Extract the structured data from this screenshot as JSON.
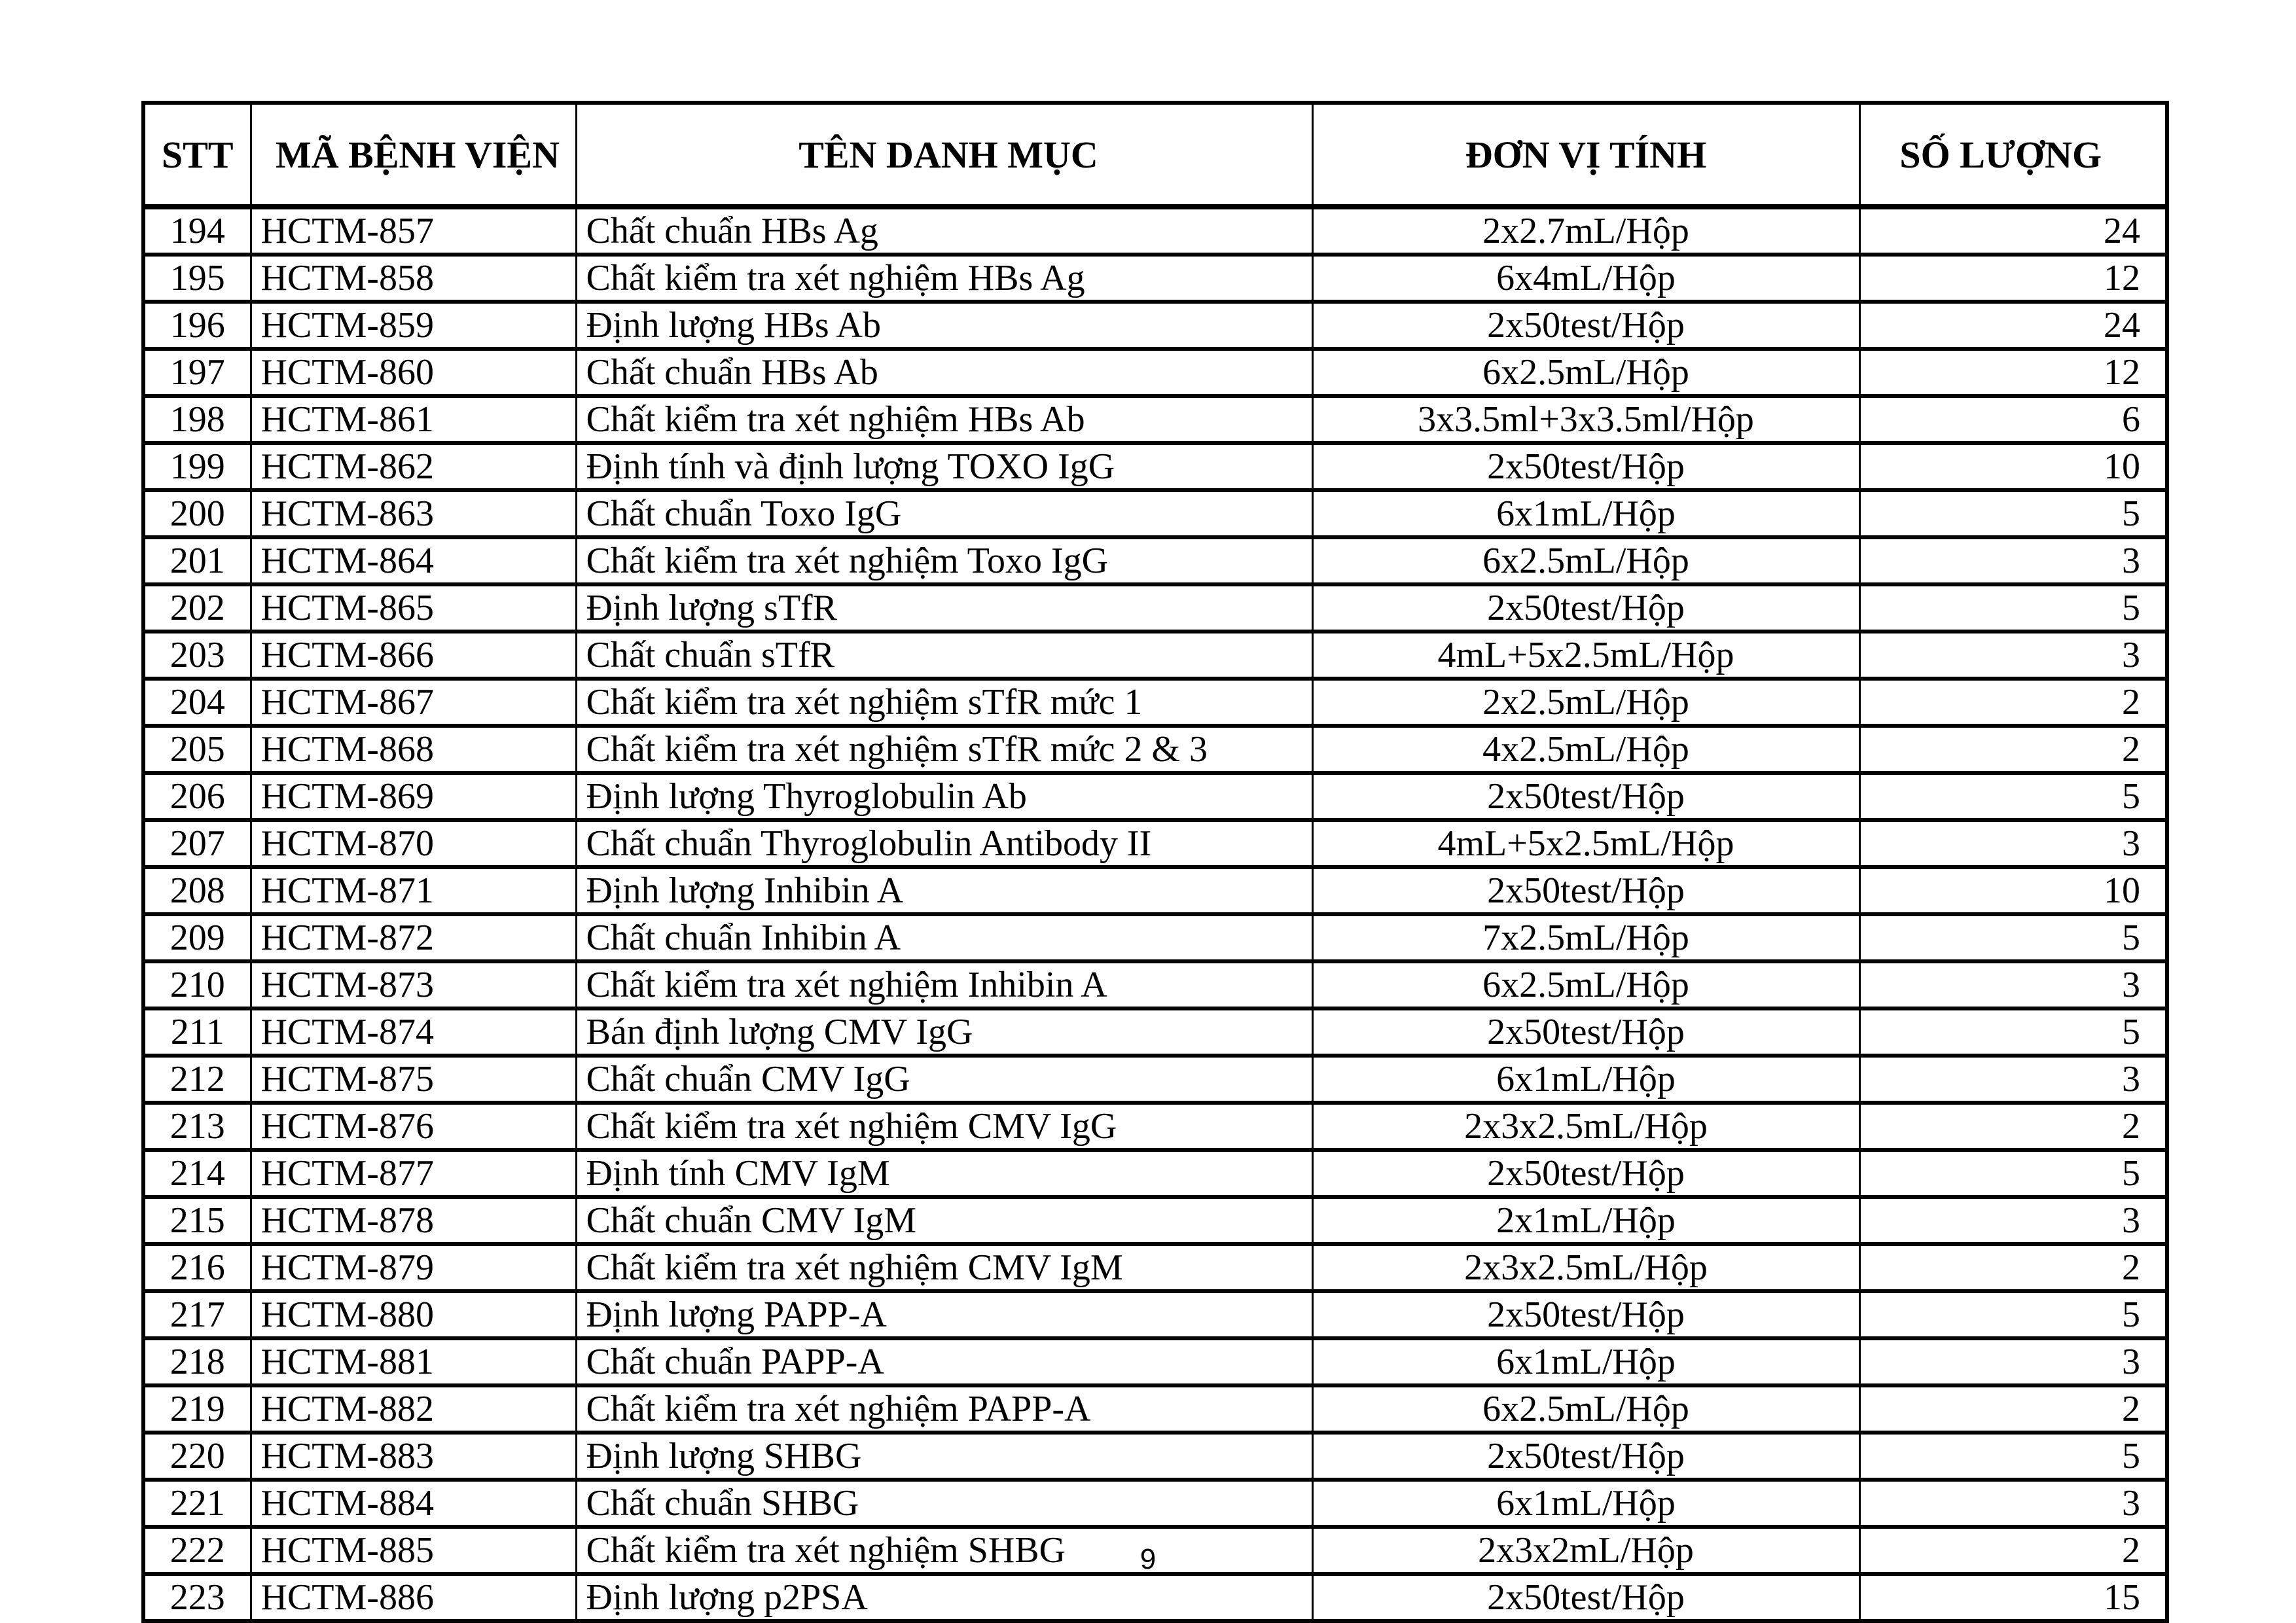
{
  "page": {
    "number": "9"
  },
  "table": {
    "headers": [
      "STT",
      "MÃ BỆNH VIỆN",
      "TÊN DANH MỤC",
      "ĐƠN VỊ TÍNH",
      "SỐ LƯỢNG"
    ],
    "rows": [
      {
        "stt": "194",
        "code": "HCTM-857",
        "name": "Chất chuẩn HBs Ag",
        "unit": "2x2.7mL/Hộp",
        "qty": "24"
      },
      {
        "stt": "195",
        "code": "HCTM-858",
        "name": "Chất kiểm tra xét nghiệm HBs Ag",
        "unit": "6x4mL/Hộp",
        "qty": "12"
      },
      {
        "stt": "196",
        "code": "HCTM-859",
        "name": "Định lượng HBs Ab",
        "unit": "2x50test/Hộp",
        "qty": "24"
      },
      {
        "stt": "197",
        "code": "HCTM-860",
        "name": "Chất chuẩn HBs Ab",
        "unit": "6x2.5mL/Hộp",
        "qty": "12"
      },
      {
        "stt": "198",
        "code": "HCTM-861",
        "name": "Chất kiểm tra xét nghiệm HBs Ab",
        "unit": "3x3.5ml+3x3.5ml/Hộp",
        "qty": "6"
      },
      {
        "stt": "199",
        "code": "HCTM-862",
        "name": "Định tính và định lượng TOXO IgG",
        "unit": "2x50test/Hộp",
        "qty": "10"
      },
      {
        "stt": "200",
        "code": "HCTM-863",
        "name": "Chất chuẩn Toxo IgG",
        "unit": "6x1mL/Hộp",
        "qty": "5"
      },
      {
        "stt": "201",
        "code": "HCTM-864",
        "name": "Chất kiểm tra xét nghiệm Toxo IgG",
        "unit": "6x2.5mL/Hộp",
        "qty": "3"
      },
      {
        "stt": "202",
        "code": "HCTM-865",
        "name": "Định lượng sTfR",
        "unit": "2x50test/Hộp",
        "qty": "5"
      },
      {
        "stt": "203",
        "code": "HCTM-866",
        "name": "Chất chuẩn sTfR",
        "unit": "4mL+5x2.5mL/Hộp",
        "qty": "3"
      },
      {
        "stt": "204",
        "code": "HCTM-867",
        "name": "Chất kiểm tra xét nghiệm sTfR mức 1",
        "unit": "2x2.5mL/Hộp",
        "qty": "2"
      },
      {
        "stt": "205",
        "code": "HCTM-868",
        "name": "Chất kiểm tra xét nghiệm sTfR mức 2 & 3",
        "unit": "4x2.5mL/Hộp",
        "qty": "2"
      },
      {
        "stt": "206",
        "code": "HCTM-869",
        "name": "Định lượng Thyroglobulin Ab",
        "unit": "2x50test/Hộp",
        "qty": "5"
      },
      {
        "stt": "207",
        "code": "HCTM-870",
        "name": "Chất chuẩn Thyroglobulin Antibody II",
        "unit": "4mL+5x2.5mL/Hộp",
        "qty": "3"
      },
      {
        "stt": "208",
        "code": "HCTM-871",
        "name": "Định lượng Inhibin A",
        "unit": "2x50test/Hộp",
        "qty": "10"
      },
      {
        "stt": "209",
        "code": "HCTM-872",
        "name": "Chất chuẩn Inhibin A",
        "unit": "7x2.5mL/Hộp",
        "qty": "5"
      },
      {
        "stt": "210",
        "code": "HCTM-873",
        "name": "Chất kiểm tra xét nghiệm Inhibin A",
        "unit": "6x2.5mL/Hộp",
        "qty": "3"
      },
      {
        "stt": "211",
        "code": "HCTM-874",
        "name": "Bán định lượng CMV IgG",
        "unit": "2x50test/Hộp",
        "qty": "5"
      },
      {
        "stt": "212",
        "code": "HCTM-875",
        "name": "Chất chuẩn CMV IgG",
        "unit": "6x1mL/Hộp",
        "qty": "3"
      },
      {
        "stt": "213",
        "code": "HCTM-876",
        "name": "Chất kiểm tra xét nghiệm CMV IgG",
        "unit": "2x3x2.5mL/Hộp",
        "qty": "2"
      },
      {
        "stt": "214",
        "code": "HCTM-877",
        "name": "Định tính CMV IgM",
        "unit": "2x50test/Hộp",
        "qty": "5"
      },
      {
        "stt": "215",
        "code": "HCTM-878",
        "name": "Chất chuẩn CMV IgM",
        "unit": "2x1mL/Hộp",
        "qty": "3"
      },
      {
        "stt": "216",
        "code": "HCTM-879",
        "name": "Chất kiểm tra xét nghiệm CMV IgM",
        "unit": "2x3x2.5mL/Hộp",
        "qty": "2"
      },
      {
        "stt": "217",
        "code": "HCTM-880",
        "name": "Định lượng PAPP-A",
        "unit": "2x50test/Hộp",
        "qty": "5"
      },
      {
        "stt": "218",
        "code": "HCTM-881",
        "name": "Chất chuẩn PAPP-A",
        "unit": "6x1mL/Hộp",
        "qty": "3"
      },
      {
        "stt": "219",
        "code": "HCTM-882",
        "name": "Chất kiểm tra xét nghiệm PAPP-A",
        "unit": "6x2.5mL/Hộp",
        "qty": "2"
      },
      {
        "stt": "220",
        "code": "HCTM-883",
        "name": "Định lượng SHBG",
        "unit": "2x50test/Hộp",
        "qty": "5"
      },
      {
        "stt": "221",
        "code": "HCTM-884",
        "name": "Chất chuẩn SHBG",
        "unit": "6x1mL/Hộp",
        "qty": "3"
      },
      {
        "stt": "222",
        "code": "HCTM-885",
        "name": "Chất kiểm tra xét nghiệm SHBG",
        "unit": "2x3x2mL/Hộp",
        "qty": "2"
      },
      {
        "stt": "223",
        "code": "HCTM-886",
        "name": "Định lượng p2PSA",
        "unit": "2x50test/Hộp",
        "qty": "15"
      }
    ]
  }
}
